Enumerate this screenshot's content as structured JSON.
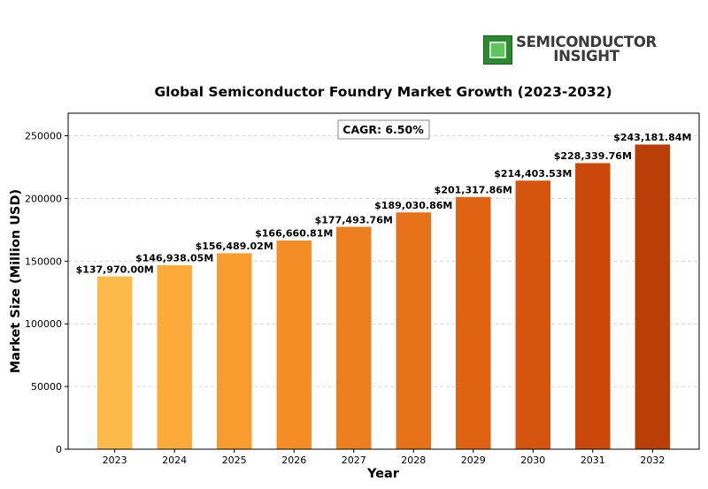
{
  "logo": {
    "line1": "SEMICONDUCTOR",
    "line2": "INSIGHT",
    "icon": "chip-icon"
  },
  "chart_data": {
    "type": "bar",
    "title": "Global Semiconductor Foundry Market Growth (2023-2032)",
    "xlabel": "Year",
    "ylabel": "Market Size (Million USD)",
    "categories": [
      "2023",
      "2024",
      "2025",
      "2026",
      "2027",
      "2028",
      "2029",
      "2030",
      "2031",
      "2032"
    ],
    "values": [
      137970.0,
      146938.05,
      156489.02,
      166660.81,
      177493.76,
      189030.86,
      201317.86,
      214403.53,
      228339.76,
      243181.84
    ],
    "data_labels": [
      "$137,970.00M",
      "$146,938.05M",
      "$156,489.02M",
      "$166,660.81M",
      "$177,493.76M",
      "$189,030.86M",
      "$201,317.86M",
      "$214,403.53M",
      "$228,339.76M",
      "$243,181.84M"
    ],
    "annotation": "CAGR: 6.50%",
    "ylim": [
      0,
      268000
    ],
    "yticks": [
      0,
      50000,
      100000,
      150000,
      200000,
      250000
    ],
    "grid": "y-dashed",
    "colors": [
      "#FDB94A",
      "#FCAB3B",
      "#F99C2E",
      "#F48D25",
      "#EE7F1E",
      "#E77118",
      "#DF6313",
      "#D6550E",
      "#CB470A",
      "#B93F07"
    ]
  }
}
